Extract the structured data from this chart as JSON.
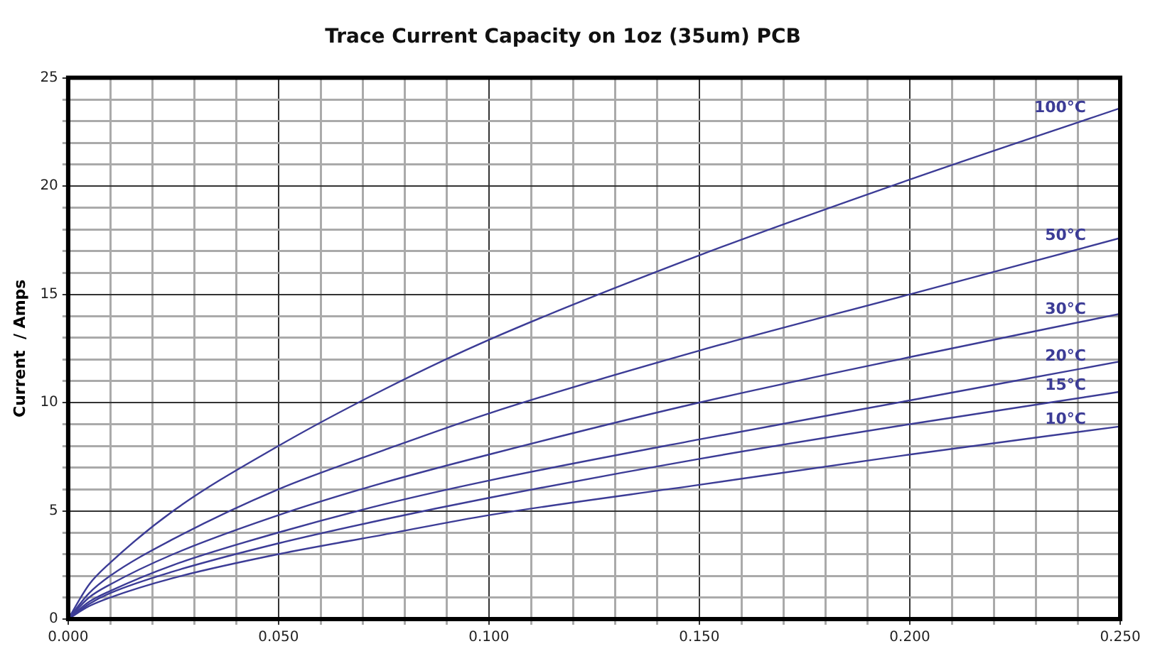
{
  "chart_data": {
    "type": "line",
    "title": "Trace Current Capacity on 1oz (35um) PCB",
    "ylabel": "Current  / Amps",
    "x": [
      0,
      0.005,
      0.01,
      0.025,
      0.05,
      0.075,
      0.1,
      0.15,
      0.2,
      0.25
    ],
    "series": [
      {
        "name": "100°C",
        "color": "#3c3c96",
        "values": [
          0,
          1.6,
          2.6,
          5.0,
          8.0,
          10.6,
          12.9,
          16.8,
          20.3,
          23.6
        ]
      },
      {
        "name": "50°C",
        "color": "#3c3c96",
        "values": [
          0,
          1.2,
          2.0,
          3.7,
          6.0,
          7.8,
          9.5,
          12.4,
          15.0,
          17.6
        ]
      },
      {
        "name": "30°C",
        "color": "#3c3c96",
        "values": [
          0,
          1.0,
          1.6,
          3.0,
          4.8,
          6.3,
          7.6,
          10.0,
          12.1,
          14.1
        ]
      },
      {
        "name": "20°C",
        "color": "#3c3c96",
        "values": [
          0,
          0.8,
          1.3,
          2.5,
          4.0,
          5.3,
          6.4,
          8.3,
          10.1,
          11.9
        ]
      },
      {
        "name": "15°C",
        "color": "#3c3c96",
        "values": [
          0,
          0.7,
          1.2,
          2.2,
          3.5,
          4.6,
          5.6,
          7.4,
          9.0,
          10.5
        ]
      },
      {
        "name": "10°C",
        "color": "#3c3c96",
        "values": [
          0,
          0.6,
          1.0,
          1.9,
          3.0,
          3.9,
          4.8,
          6.2,
          7.6,
          8.9
        ]
      }
    ],
    "xlim": [
      0,
      0.25
    ],
    "xticks": [
      {
        "value": 0,
        "label": "0.000"
      },
      {
        "value": 0.01,
        "label": null
      },
      {
        "value": 0.02,
        "label": null
      },
      {
        "value": 0.03,
        "label": null
      },
      {
        "value": 0.04,
        "label": null
      },
      {
        "value": 0.05,
        "label": "0.050"
      },
      {
        "value": 0.06,
        "label": null
      },
      {
        "value": 0.07,
        "label": null
      },
      {
        "value": 0.08,
        "label": null
      },
      {
        "value": 0.09,
        "label": null
      },
      {
        "value": 0.1,
        "label": "0.100"
      },
      {
        "value": 0.11,
        "label": null
      },
      {
        "value": 0.12,
        "label": null
      },
      {
        "value": 0.13,
        "label": null
      },
      {
        "value": 0.14,
        "label": null
      },
      {
        "value": 0.15,
        "label": "0.150"
      },
      {
        "value": 0.16,
        "label": null
      },
      {
        "value": 0.17,
        "label": null
      },
      {
        "value": 0.18,
        "label": null
      },
      {
        "value": 0.19,
        "label": null
      },
      {
        "value": 0.2,
        "label": "0.200"
      },
      {
        "value": 0.21,
        "label": null
      },
      {
        "value": 0.22,
        "label": null
      },
      {
        "value": 0.23,
        "label": null
      },
      {
        "value": 0.24,
        "label": null
      },
      {
        "value": 0.25,
        "label": "0.250"
      }
    ],
    "ylim": [
      0,
      25
    ],
    "yticks": [
      0,
      {
        "value": 1,
        "label": null
      },
      {
        "value": 2,
        "label": null
      },
      {
        "value": 3,
        "label": null
      },
      {
        "value": 4,
        "label": null
      },
      5,
      {
        "value": 6,
        "label": null
      },
      {
        "value": 7,
        "label": null
      },
      {
        "value": 8,
        "label": null
      },
      {
        "value": 9,
        "label": null
      },
      10,
      {
        "value": 11,
        "label": null
      },
      {
        "value": 12,
        "label": null
      },
      {
        "value": 13,
        "label": null
      },
      {
        "value": 14,
        "label": null
      },
      15,
      {
        "value": 16,
        "label": null
      },
      {
        "value": 17,
        "label": null
      },
      {
        "value": 18,
        "label": null
      },
      {
        "value": 19,
        "label": null
      },
      20,
      {
        "value": 21,
        "label": null
      },
      {
        "value": 22,
        "label": null
      },
      {
        "value": 23,
        "label": null
      },
      {
        "value": 24,
        "label": null
      },
      25
    ],
    "grid": true,
    "marker": "none",
    "line_style": "solid",
    "legend": false
  }
}
